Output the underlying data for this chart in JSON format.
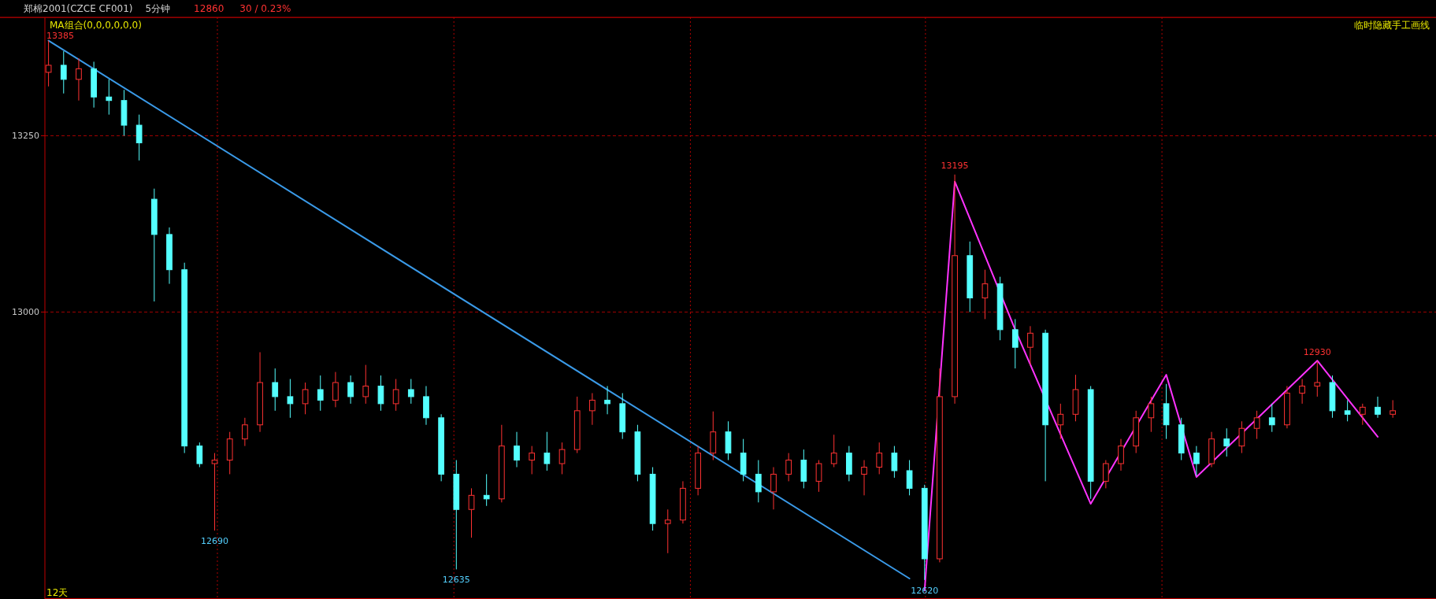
{
  "chart_data": {
    "type": "candlestick",
    "title": "郑棉2001(CZCE CF001)",
    "subtitle": "5分钟",
    "annotations": [
      "12860",
      "30 / 0.23%",
      "MA组合(0,0,0,0,0,0)",
      "临时隐藏手工画线",
      "12天",
      "13385",
      {
        "text": "12690",
        "y": 12690
      },
      {
        "text": "12635",
        "y": 12635
      },
      {
        "text": "12620",
        "y": 12620
      },
      {
        "text": "13195",
        "y": 13195
      },
      {
        "text": "12930",
        "y": 12930
      }
    ],
    "categories": [
      null,
      null,
      null,
      null,
      null,
      null,
      null,
      null,
      null,
      null,
      null,
      null,
      null,
      null,
      null,
      null,
      null,
      null,
      null,
      null,
      null,
      null,
      null,
      null,
      null,
      null,
      null,
      null,
      null,
      null,
      null,
      null,
      null,
      null,
      null,
      null,
      null,
      null,
      null,
      null,
      null,
      null,
      null,
      null,
      null,
      null,
      null,
      null,
      null,
      null,
      null,
      null,
      null,
      null,
      null,
      null,
      null,
      null,
      null,
      null,
      null,
      null,
      null,
      null,
      null,
      null,
      null,
      null,
      null,
      null,
      null,
      null,
      null,
      null,
      null,
      null,
      null,
      null,
      null,
      null,
      null,
      null,
      null,
      null,
      null,
      null,
      null,
      null,
      null,
      null
    ],
    "ohlc": [
      [
        13340,
        13385,
        13320,
        13350
      ],
      [
        13350,
        13370,
        13310,
        13330
      ],
      [
        13330,
        13360,
        13300,
        13345
      ],
      [
        13345,
        13355,
        13290,
        13305
      ],
      [
        13305,
        13330,
        13280,
        13300
      ],
      [
        13300,
        13315,
        13250,
        13265
      ],
      [
        13265,
        13280,
        13215,
        13240
      ],
      [
        13160,
        13175,
        13015,
        13110
      ],
      [
        13110,
        13120,
        13040,
        13060
      ],
      [
        13060,
        13070,
        12800,
        12810
      ],
      [
        12810,
        12815,
        12780,
        12785
      ],
      [
        12785,
        12800,
        12690,
        12790
      ],
      [
        12790,
        12830,
        12770,
        12820
      ],
      [
        12820,
        12850,
        12810,
        12840
      ],
      [
        12840,
        12943,
        12830,
        12900
      ],
      [
        12900,
        12920,
        12860,
        12880
      ],
      [
        12880,
        12905,
        12850,
        12870
      ],
      [
        12870,
        12900,
        12855,
        12890
      ],
      [
        12890,
        12910,
        12860,
        12875
      ],
      [
        12875,
        12915,
        12865,
        12900
      ],
      [
        12900,
        12910,
        12870,
        12880
      ],
      [
        12880,
        12925,
        12870,
        12895
      ],
      [
        12895,
        12910,
        12860,
        12870
      ],
      [
        12870,
        12905,
        12860,
        12890
      ],
      [
        12890,
        12905,
        12870,
        12880
      ],
      [
        12880,
        12895,
        12840,
        12850
      ],
      [
        12850,
        12855,
        12760,
        12770
      ],
      [
        12770,
        12790,
        12635,
        12720
      ],
      [
        12720,
        12750,
        12680,
        12740
      ],
      [
        12740,
        12770,
        12725,
        12735
      ],
      [
        12735,
        12840,
        12730,
        12810
      ],
      [
        12810,
        12830,
        12780,
        12790
      ],
      [
        12790,
        12810,
        12770,
        12800
      ],
      [
        12800,
        12830,
        12775,
        12785
      ],
      [
        12785,
        12815,
        12770,
        12805
      ],
      [
        12805,
        12880,
        12800,
        12860
      ],
      [
        12860,
        12885,
        12840,
        12875
      ],
      [
        12875,
        12895,
        12855,
        12870
      ],
      [
        12870,
        12885,
        12820,
        12830
      ],
      [
        12830,
        12840,
        12760,
        12770
      ],
      [
        12770,
        12780,
        12690,
        12700
      ],
      [
        12700,
        12720,
        12658,
        12705
      ],
      [
        12705,
        12760,
        12700,
        12750
      ],
      [
        12750,
        12810,
        12740,
        12800
      ],
      [
        12800,
        12859,
        12790,
        12830
      ],
      [
        12830,
        12845,
        12790,
        12800
      ],
      [
        12800,
        12820,
        12760,
        12770
      ],
      [
        12770,
        12790,
        12730,
        12745
      ],
      [
        12745,
        12780,
        12720,
        12770
      ],
      [
        12770,
        12800,
        12760,
        12790
      ],
      [
        12790,
        12805,
        12750,
        12760
      ],
      [
        12760,
        12790,
        12745,
        12785
      ],
      [
        12785,
        12826,
        12780,
        12800
      ],
      [
        12800,
        12810,
        12760,
        12770
      ],
      [
        12770,
        12790,
        12740,
        12780
      ],
      [
        12780,
        12815,
        12770,
        12800
      ],
      [
        12800,
        12810,
        12765,
        12775
      ],
      [
        12775,
        12790,
        12740,
        12750
      ],
      [
        12750,
        12755,
        12620,
        12650
      ],
      [
        12650,
        12920,
        12645,
        12880
      ],
      [
        12880,
        13195,
        12870,
        13080
      ],
      [
        13080,
        13100,
        13000,
        13020
      ],
      [
        13020,
        13060,
        12990,
        13040
      ],
      [
        13040,
        13050,
        12960,
        12975
      ],
      [
        12975,
        12990,
        12920,
        12950
      ],
      [
        12950,
        12980,
        12925,
        12970
      ],
      [
        12970,
        12975,
        12760,
        12840
      ],
      [
        12840,
        12870,
        12820,
        12855
      ],
      [
        12855,
        12911,
        12845,
        12890
      ],
      [
        12890,
        12895,
        12735,
        12760
      ],
      [
        12760,
        12790,
        12750,
        12785
      ],
      [
        12785,
        12820,
        12775,
        12810
      ],
      [
        12810,
        12860,
        12800,
        12850
      ],
      [
        12850,
        12880,
        12830,
        12870
      ],
      [
        12870,
        12898,
        12820,
        12840
      ],
      [
        12840,
        12850,
        12790,
        12800
      ],
      [
        12800,
        12810,
        12768,
        12785
      ],
      [
        12785,
        12830,
        12780,
        12820
      ],
      [
        12820,
        12835,
        12795,
        12810
      ],
      [
        12810,
        12845,
        12800,
        12835
      ],
      [
        12835,
        12860,
        12820,
        12850
      ],
      [
        12850,
        12870,
        12830,
        12840
      ],
      [
        12840,
        12895,
        12835,
        12885
      ],
      [
        12885,
        12905,
        12870,
        12895
      ],
      [
        12895,
        12930,
        12880,
        12900
      ],
      [
        12900,
        12910,
        12850,
        12860
      ],
      [
        12860,
        12875,
        12845,
        12855
      ],
      [
        12855,
        12870,
        12840,
        12865
      ],
      [
        12865,
        12880,
        12850,
        12855
      ],
      [
        12855,
        12875,
        12850,
        12860
      ]
    ],
    "series": [
      {
        "type": "line",
        "color": "#3a9ae8",
        "values": [
          13385,
          null,
          null,
          null,
          null,
          null,
          null,
          null,
          null,
          null,
          null,
          null,
          null,
          null,
          null,
          null,
          null,
          null,
          null,
          null,
          null,
          null,
          null,
          null,
          null,
          null,
          null,
          null,
          null,
          null,
          null,
          null,
          null,
          null,
          null,
          null,
          null,
          null,
          null,
          null,
          null,
          null,
          null,
          null,
          null,
          null,
          null,
          null,
          null,
          null,
          null,
          null,
          null,
          null,
          null,
          null,
          null,
          12622,
          null,
          null,
          null,
          null,
          null,
          null,
          null,
          null,
          null,
          null,
          null,
          null,
          null,
          null,
          null,
          null,
          null,
          null,
          null,
          null,
          null,
          null,
          null,
          null,
          null,
          null,
          null,
          null,
          null,
          null,
          null,
          null
        ]
      },
      {
        "type": "line",
        "color": "#ff33ff",
        "values": [
          null,
          null,
          null,
          null,
          null,
          null,
          null,
          null,
          null,
          null,
          null,
          null,
          null,
          null,
          null,
          null,
          null,
          null,
          null,
          null,
          null,
          null,
          null,
          null,
          null,
          null,
          null,
          null,
          null,
          null,
          null,
          null,
          null,
          null,
          null,
          null,
          null,
          null,
          null,
          null,
          null,
          null,
          null,
          null,
          null,
          null,
          null,
          null,
          null,
          null,
          null,
          null,
          null,
          null,
          null,
          null,
          null,
          null,
          12605,
          null,
          13185,
          null,
          null,
          null,
          12975,
          null,
          null,
          null,
          null,
          12728,
          null,
          null,
          null,
          null,
          12911,
          null,
          12766,
          null,
          null,
          null,
          null,
          null,
          null,
          null,
          12931,
          null,
          null,
          null,
          12823,
          null
        ]
      }
    ],
    "ylim": [
      12593,
      13418
    ],
    "yticks": [
      13250,
      13000
    ],
    "grid": "y",
    "marker": "none",
    "line_style": "solid"
  }
}
